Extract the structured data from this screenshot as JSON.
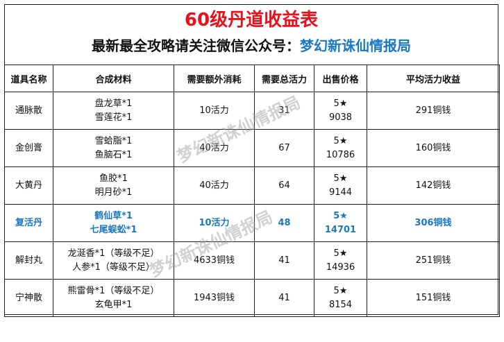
{
  "title": "60级丹道收益表",
  "subtitle_prefix": "最新最全攻略请关注微信公众号：",
  "subtitle_account": "梦幻新诛仙情报局",
  "headers": [
    "道具名称",
    "合成材料",
    "需要额外消耗",
    "需要总活力",
    "出售价格",
    "平均活力收益"
  ],
  "rows": [
    {
      "name": "通脉散",
      "mat1": "盘龙草*1",
      "mat2": "雪莲花*1",
      "extra": "10活力",
      "total": "31",
      "price1": "5★",
      "price2": "9038",
      "avg": "291铜钱"
    },
    {
      "name": "金创膏",
      "mat1": "雪蛤脂*1",
      "mat2": "鱼脑石*1",
      "extra": "40活力",
      "total": "67",
      "price1": "5★",
      "price2": "10786",
      "avg": "160铜钱"
    },
    {
      "name": "大黄丹",
      "mat1": "鱼胶*1",
      "mat2": "明月砂*1",
      "extra": "40活力",
      "total": "64",
      "price1": "5★",
      "price2": "9144",
      "avg": "142铜钱"
    },
    {
      "name": "复活丹",
      "mat1": "鹤仙草*1",
      "mat2": "七尾蜈蚣*1",
      "extra": "10活力",
      "total": "48",
      "price1": "5★",
      "price2": "14701",
      "avg": "306铜钱"
    },
    {
      "name": "解封丸",
      "mat1": "龙涎香*1（等级不足）",
      "mat2": "人参*1（等级不足）",
      "extra": "4633铜钱",
      "total": "41",
      "price1": "5★",
      "price2": "14936",
      "avg": "251铜钱"
    },
    {
      "name": "宁神散",
      "mat1": "熊雷骨*1（等级不足）",
      "mat2": "玄龟甲*1",
      "extra": "1943铜钱",
      "total": "41",
      "price1": "5★",
      "price2": "8154",
      "avg": "151铜钱"
    }
  ],
  "watermark": "梦幻新诛仙情报局",
  "colors": {
    "title": "#e8101a",
    "accent": "#1a78c2"
  }
}
